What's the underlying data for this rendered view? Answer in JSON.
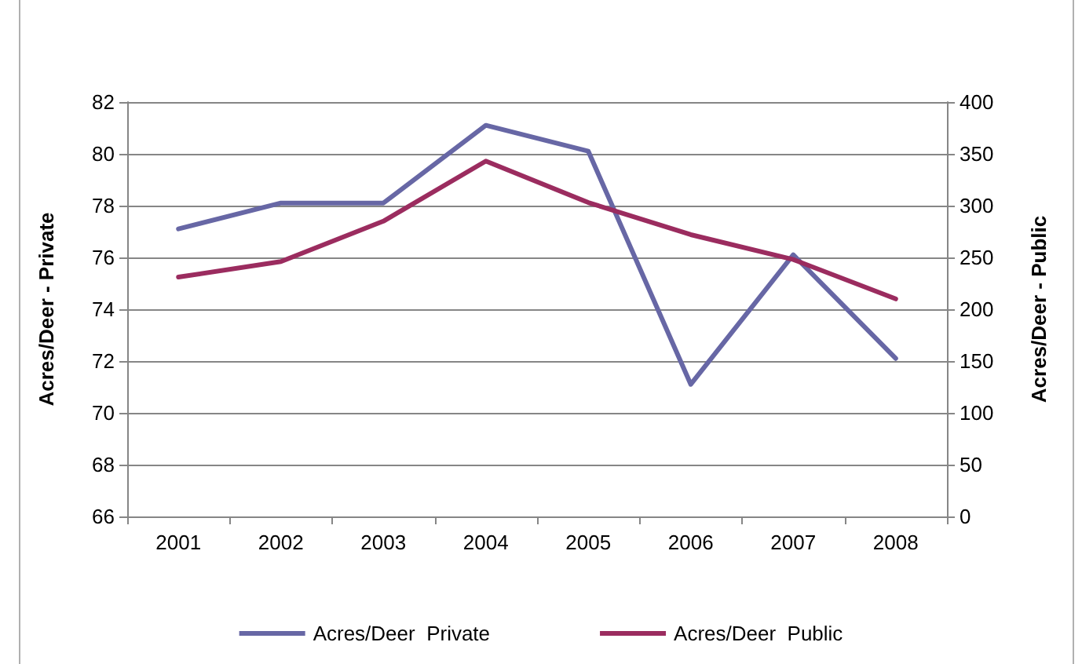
{
  "chart_data": {
    "type": "line",
    "categories": [
      "2001",
      "2002",
      "2003",
      "2004",
      "2005",
      "2006",
      "2007",
      "2008"
    ],
    "series": [
      {
        "name": "Acres/Deer  Private",
        "color": "#6767a5",
        "values": [
          77.1,
          78.1,
          78.1,
          81.1,
          80.1,
          71.1,
          76.1,
          72.1
        ]
      },
      {
        "name": "Acres/Deer  Public",
        "color": "#9b2c5f",
        "axis": "y2",
        "values": [
          231,
          246,
          285,
          343,
          303,
          272,
          248,
          210
        ]
      }
    ],
    "ylabel": "Acres/Deer - Private",
    "y2label": "Acres/Deer - Public",
    "ylim": [
      66,
      82
    ],
    "yticks": [
      66,
      68,
      70,
      72,
      74,
      76,
      78,
      80,
      82
    ],
    "y2lim": [
      0,
      400
    ],
    "y2ticks": [
      0,
      50,
      100,
      150,
      200,
      250,
      300,
      350,
      400
    ],
    "grid": "y",
    "legend": "bottom",
    "marker": "none",
    "line_style": "solid"
  }
}
